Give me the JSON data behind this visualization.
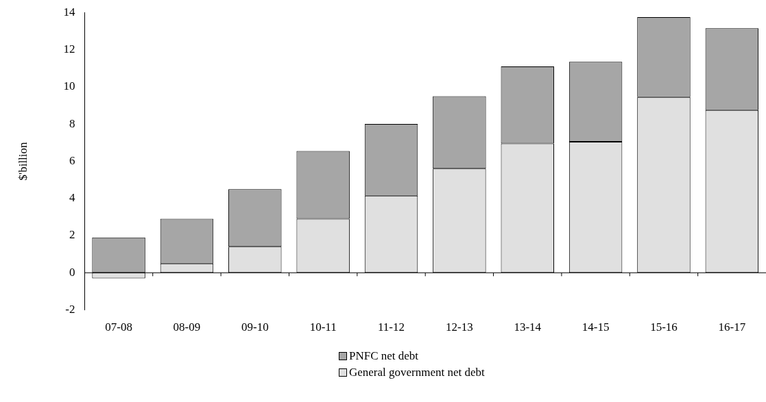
{
  "chart_data": {
    "type": "bar",
    "stacked": true,
    "ylabel": "$'billion",
    "categories": [
      "07-08",
      "08-09",
      "09-10",
      "10-11",
      "11-12",
      "12-13",
      "13-14",
      "14-15",
      "15-16",
      "16-17"
    ],
    "series": [
      {
        "name": "General government net debt",
        "color": "#e0e0e0",
        "values": [
          -0.3,
          0.5,
          1.4,
          2.9,
          4.15,
          5.6,
          6.95,
          7.05,
          9.45,
          8.75
        ]
      },
      {
        "name": "PNFC net debt",
        "color": "#a6a6a6",
        "values": [
          1.9,
          2.4,
          3.1,
          3.65,
          3.85,
          3.9,
          4.15,
          4.3,
          4.3,
          4.4
        ]
      }
    ],
    "ylim": [
      -2,
      14
    ],
    "yticks": [
      -2,
      0,
      2,
      4,
      6,
      8,
      10,
      12,
      14
    ],
    "grid": false,
    "legend": "bottom",
    "ref_lines": [
      {
        "axis": "y",
        "value": 0,
        "color": "#000000"
      }
    ]
  }
}
